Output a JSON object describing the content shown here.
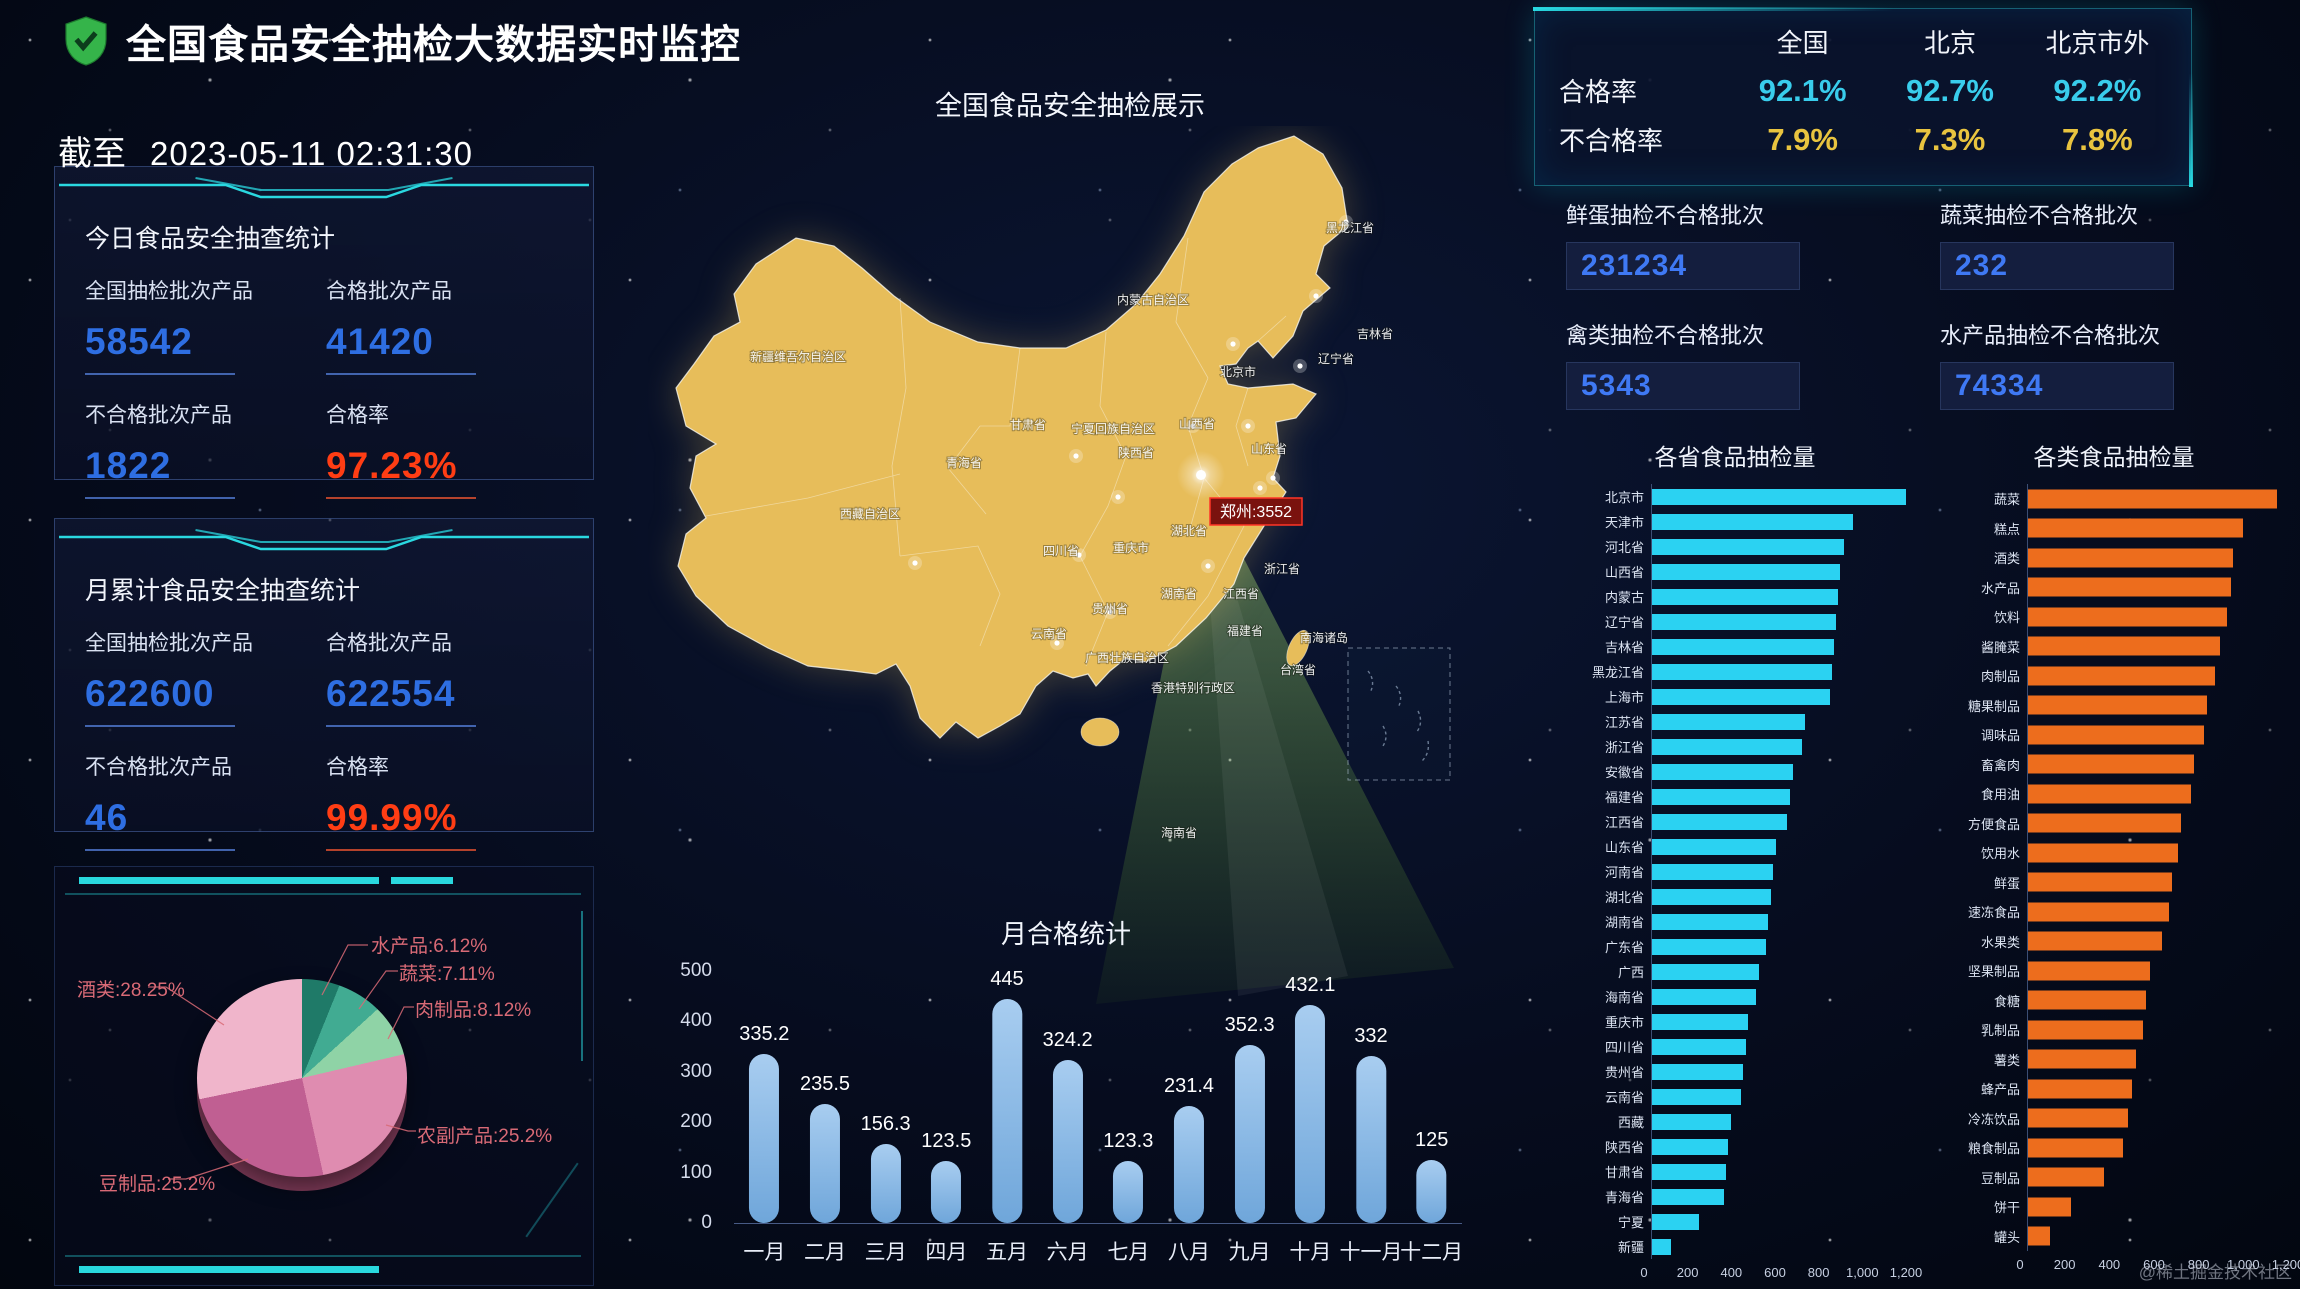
{
  "header": {
    "title": "全国食品安全抽检大数据实时监控",
    "asof_label": "截至",
    "asof_time": "2023-05-11 02:31:30"
  },
  "today_panel": {
    "title": "今日食品安全抽查统计",
    "stats": [
      {
        "label": "全国抽检批次产品",
        "value": "58542"
      },
      {
        "label": "合格批次产品",
        "value": "41420"
      },
      {
        "label": "不合格批次产品",
        "value": "1822"
      },
      {
        "label": "合格率",
        "value": "97.23%"
      }
    ]
  },
  "month_panel": {
    "title": "月累计食品安全抽查统计",
    "stats": [
      {
        "label": "全国抽检批次产品",
        "value": "622600"
      },
      {
        "label": "合格批次产品",
        "value": "622554"
      },
      {
        "label": "不合格批次产品",
        "value": "46"
      },
      {
        "label": "合格率",
        "value": "99.99%"
      }
    ]
  },
  "map": {
    "title": "全国食品安全抽检展示",
    "tooltip": "郑州:3552",
    "labels": [
      "黑龙江省",
      "内蒙古自治区",
      "吉林省",
      "辽宁省",
      "北京市",
      "新疆维吾尔自治区",
      "甘肃省",
      "宁夏回族自治区",
      "山西省",
      "陕西省",
      "山东省",
      "青海省",
      "西藏自治区",
      "四川省",
      "重庆市",
      "湖北省",
      "湖南省",
      "江西省",
      "浙江省",
      "贵州省",
      "福建省",
      "云南省",
      "广西壮族自治区",
      "香港特别行政区",
      "台湾省",
      "南海诸岛",
      "海南省"
    ]
  },
  "summary_table": {
    "columns": [
      "全国",
      "北京",
      "北京市外"
    ],
    "rows": [
      {
        "label": "合格率",
        "values": [
          "92.1%",
          "92.7%",
          "92.2%"
        ]
      },
      {
        "label": "不合格率",
        "values": [
          "7.9%",
          "7.3%",
          "7.8%"
        ]
      }
    ]
  },
  "fail_stats": [
    {
      "label": "鲜蛋抽检不合格批次",
      "value": "231234"
    },
    {
      "label": "蔬菜抽检不合格批次",
      "value": "232"
    },
    {
      "label": "禽类抽检不合格批次",
      "value": "5343"
    },
    {
      "label": "水产品抽检不合格批次",
      "value": "74334"
    }
  ],
  "watermark": "@稀土掘金技术社区",
  "chart_data": [
    {
      "type": "pie",
      "title": "",
      "labels": [
        "水产品:6.12%",
        "蔬菜:7.11%",
        "肉制品:8.12%",
        "农副产品:25.2%",
        "豆制品:25.2%",
        "酒类:28.25%"
      ],
      "values": [
        6.12,
        7.11,
        8.12,
        25.2,
        25.2,
        28.25
      ],
      "colors": [
        "#1f7a68",
        "#41ab92",
        "#8fd3a6",
        "#df8cb0",
        "#c05f92",
        "#f0b5cb"
      ]
    },
    {
      "type": "bar",
      "title": "月合格统计",
      "categories": [
        "一月",
        "二月",
        "三月",
        "四月",
        "五月",
        "六月",
        "七月",
        "八月",
        "九月",
        "十月",
        "十一月",
        "十二月"
      ],
      "values": [
        335.2,
        235.5,
        156.3,
        123.5,
        445,
        324.2,
        123.3,
        231.4,
        352.3,
        432.1,
        332,
        125
      ],
      "ylim": [
        0,
        500
      ],
      "yticks": [
        0,
        100,
        200,
        300,
        400,
        500
      ],
      "bar_color": "#7fb1e2"
    },
    {
      "type": "bar",
      "orientation": "horizontal",
      "title": "各省食品抽检量",
      "categories": [
        "北京市",
        "天津市",
        "河北省",
        "山西省",
        "内蒙古",
        "辽宁省",
        "吉林省",
        "黑龙江省",
        "上海市",
        "江苏省",
        "浙江省",
        "安徽省",
        "福建省",
        "江西省",
        "山东省",
        "河南省",
        "湖北省",
        "湖南省",
        "广东省",
        "广西",
        "海南省",
        "重庆市",
        "四川省",
        "贵州省",
        "云南省",
        "西藏",
        "陕西省",
        "甘肃省",
        "青海省",
        "宁夏",
        "新疆"
      ],
      "values": [
        1200,
        950,
        905,
        890,
        880,
        870,
        860,
        850,
        840,
        725,
        710,
        665,
        650,
        640,
        585,
        570,
        560,
        550,
        540,
        505,
        490,
        455,
        445,
        430,
        420,
        375,
        360,
        350,
        340,
        220,
        90
      ],
      "xlim": [
        0,
        1200
      ],
      "xticks": [
        "0",
        "200",
        "400",
        "600",
        "800",
        "1,000",
        "1,200"
      ],
      "bar_color": "#2bd2f2"
    },
    {
      "type": "bar",
      "orientation": "horizontal",
      "title": "各类食品抽检量",
      "categories": [
        "蔬菜",
        "糕点",
        "酒类",
        "水产品",
        "饮料",
        "酱腌菜",
        "肉制品",
        "糖果制品",
        "调味品",
        "畜禽肉",
        "食用油",
        "方便食品",
        "饮用水",
        "鲜蛋",
        "速冻食品",
        "水果类",
        "坚果制品",
        "食糖",
        "乳制品",
        "薯类",
        "蜂产品",
        "冷冻饮品",
        "粮食制品",
        "豆制品",
        "饼干",
        "罐头"
      ],
      "values": [
        1150,
        990,
        945,
        935,
        920,
        885,
        865,
        825,
        810,
        765,
        750,
        705,
        690,
        665,
        650,
        620,
        565,
        545,
        530,
        500,
        480,
        460,
        440,
        350,
        200,
        100
      ],
      "xlim": [
        0,
        1200
      ],
      "xticks": [
        "0",
        "200",
        "400",
        "600",
        "800",
        "1,000",
        "1,200"
      ],
      "bar_color": "#ed6d1d"
    }
  ]
}
